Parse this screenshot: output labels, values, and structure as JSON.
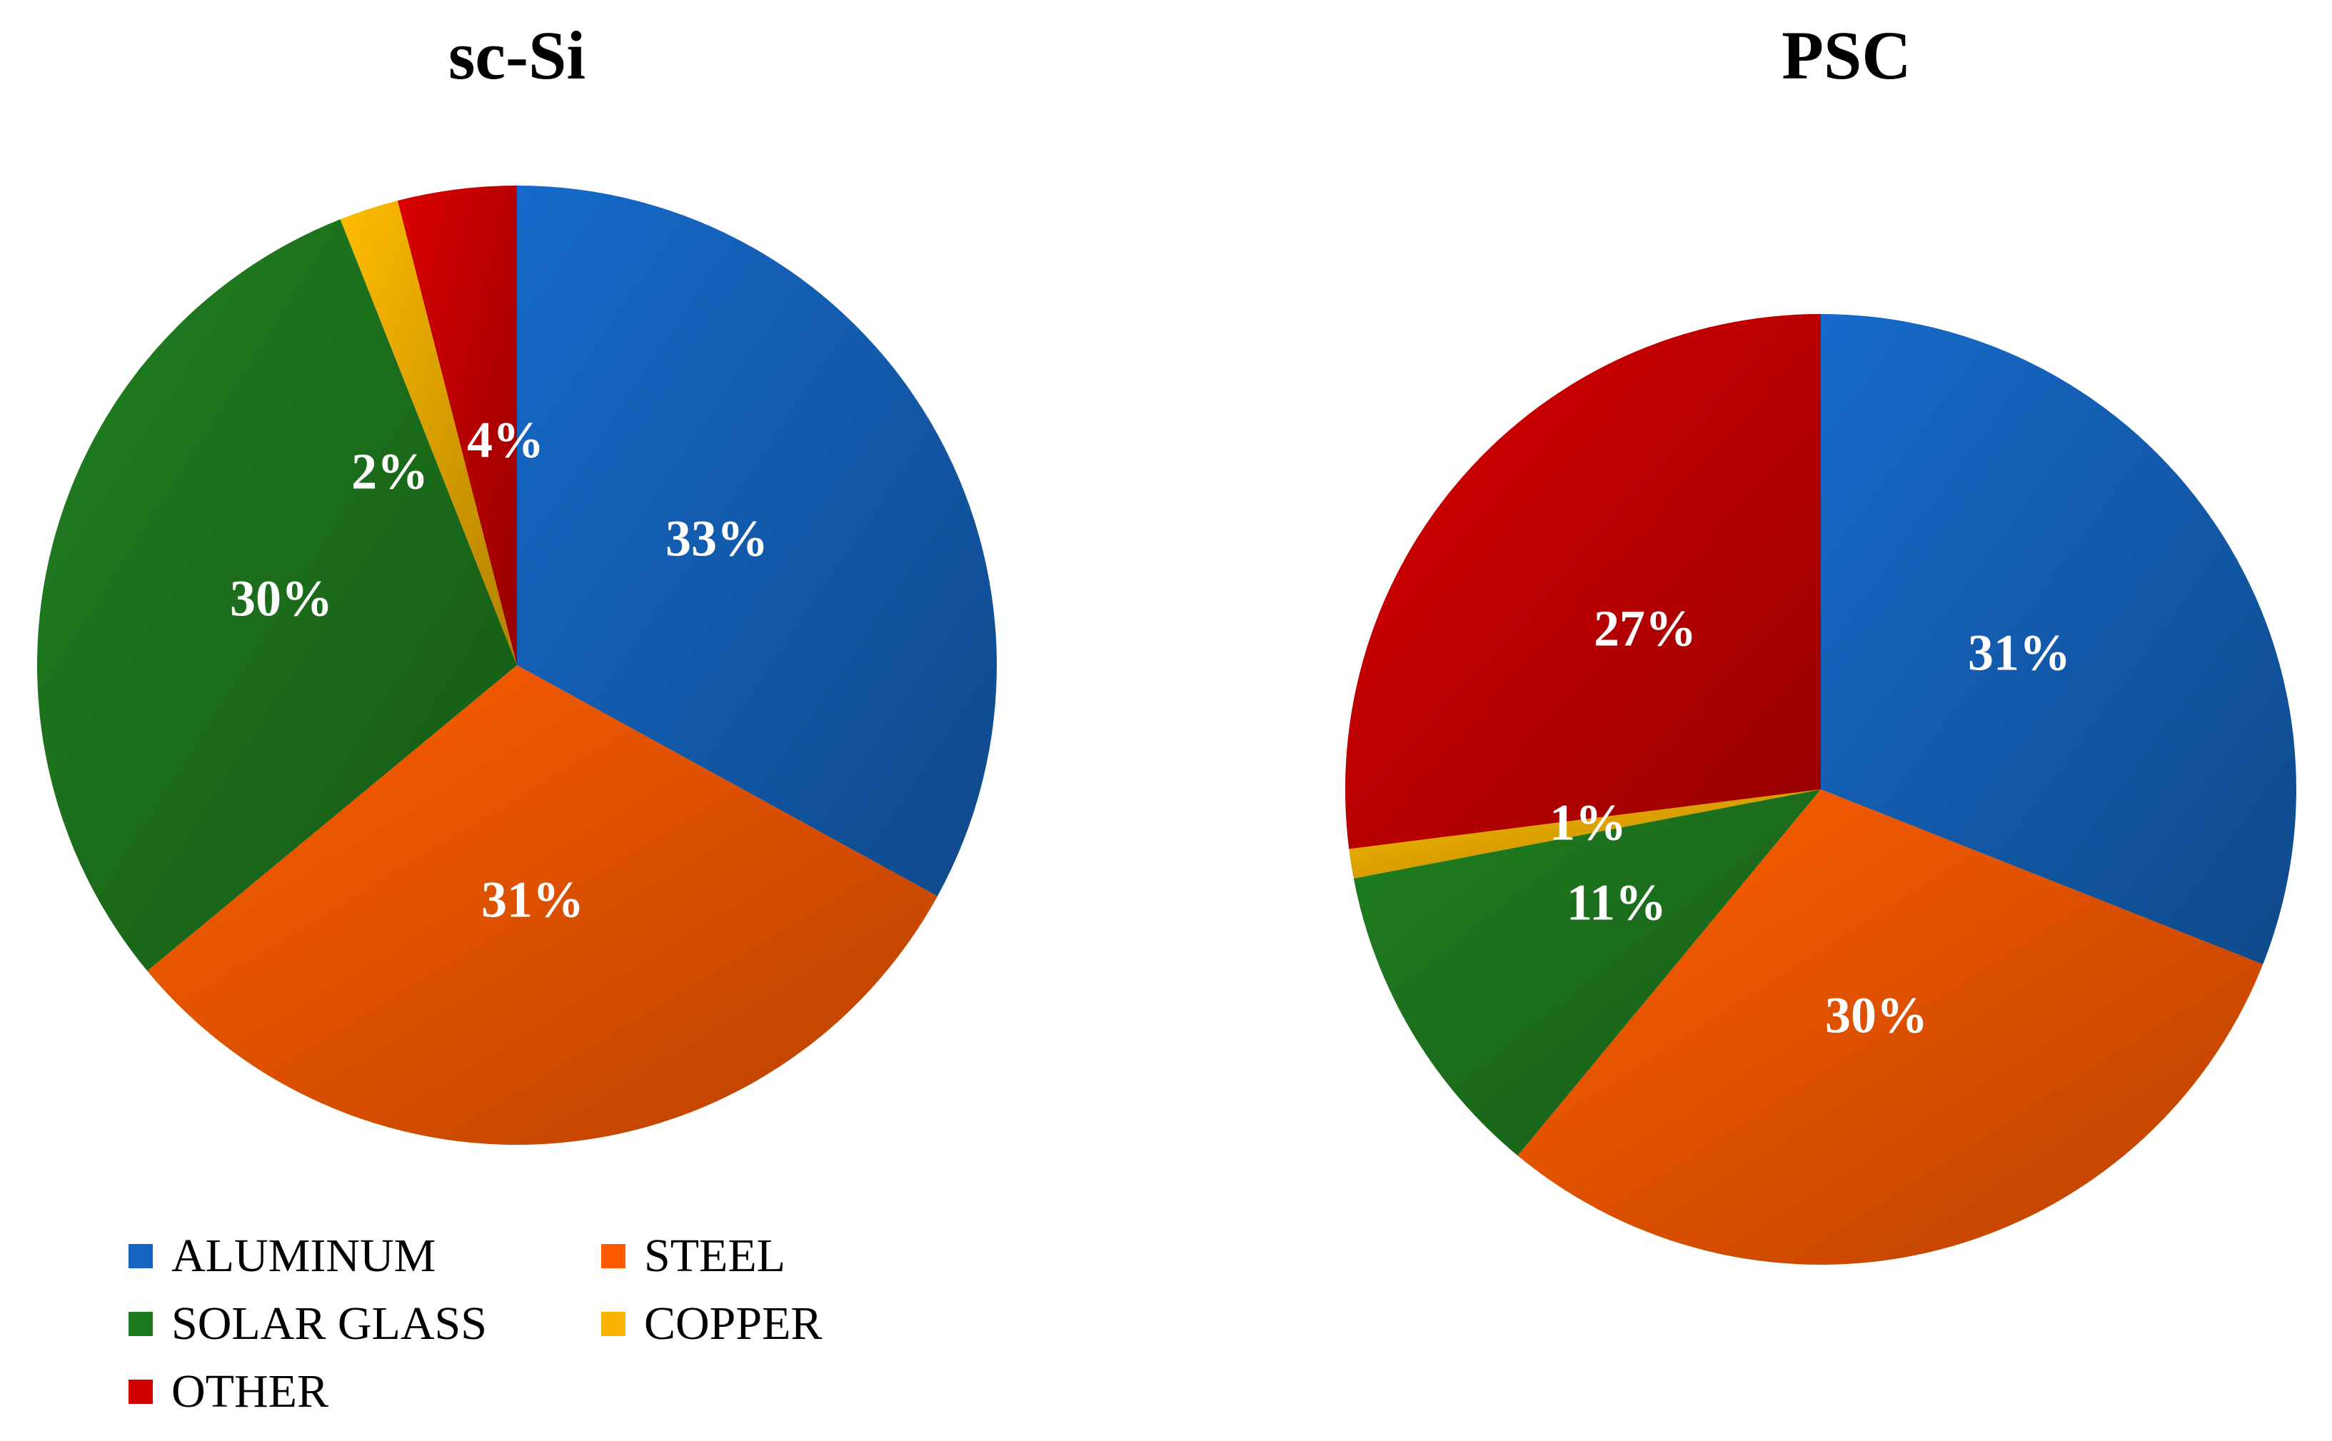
{
  "chart_data": [
    {
      "type": "pie",
      "title": "sc-Si",
      "categories": [
        "ALUMINUM",
        "STEEL",
        "SOLAR GLASS",
        "COPPER",
        "OTHER"
      ],
      "values": [
        33,
        31,
        30,
        2,
        4
      ],
      "labels": [
        "33%",
        "31%",
        "30%",
        "2%",
        "4%"
      ],
      "start_angle_deg": 0,
      "direction": "clockwise"
    },
    {
      "type": "pie",
      "title": "PSC",
      "categories": [
        "ALUMINUM",
        "STEEL",
        "SOLAR GLASS",
        "COPPER",
        "OTHER"
      ],
      "values": [
        31,
        30,
        11,
        1,
        27
      ],
      "labels": [
        "31%",
        "30%",
        "11%",
        "1%",
        "27%"
      ],
      "start_angle_deg": 0,
      "direction": "clockwise"
    }
  ],
  "legend": {
    "placement": "bottom-left",
    "items": [
      {
        "label": "ALUMINUM",
        "color": "#1565C0"
      },
      {
        "label": "STEEL",
        "color": "#FF5A00"
      },
      {
        "label": "SOLAR GLASS",
        "color": "#1E7A1E"
      },
      {
        "label": "COPPER",
        "color": "#F7B300"
      },
      {
        "label": "OTHER",
        "color": "#D00000"
      }
    ]
  },
  "colors": {
    "ALUMINUM": "#1565C0",
    "STEEL": "#FF5A00",
    "SOLAR GLASS": "#1E7A1E",
    "COPPER": "#F7B300",
    "OTHER": "#D00000"
  }
}
